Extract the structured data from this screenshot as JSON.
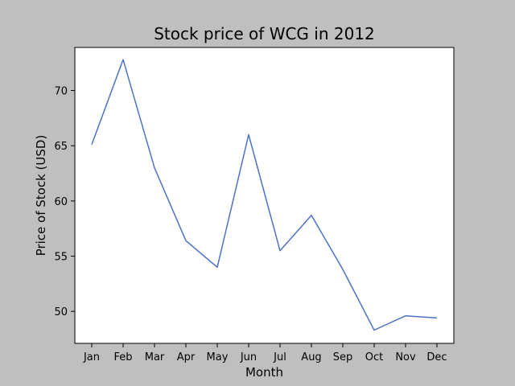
{
  "chart_data": {
    "type": "line",
    "title": "Stock price of WCG in 2012",
    "xlabel": "Month",
    "ylabel": "Price of Stock (USD)",
    "categories": [
      "Jan",
      "Feb",
      "Mar",
      "Apr",
      "May",
      "Jun",
      "Jul",
      "Aug",
      "Sep",
      "Oct",
      "Nov",
      "Dec"
    ],
    "series": [
      {
        "values": [
          65.1,
          72.8,
          63.0,
          56.4,
          54.0,
          66.0,
          55.5,
          58.7,
          53.8,
          48.3,
          49.6,
          49.4
        ]
      }
    ],
    "yticks": [
      50,
      55,
      60,
      65,
      70
    ],
    "ylim": [
      47.1,
      73.9
    ],
    "grid": false,
    "colors": {
      "line": "#4c72c4",
      "background": "#bfbfbf",
      "plot_area": "#ffffff"
    }
  }
}
